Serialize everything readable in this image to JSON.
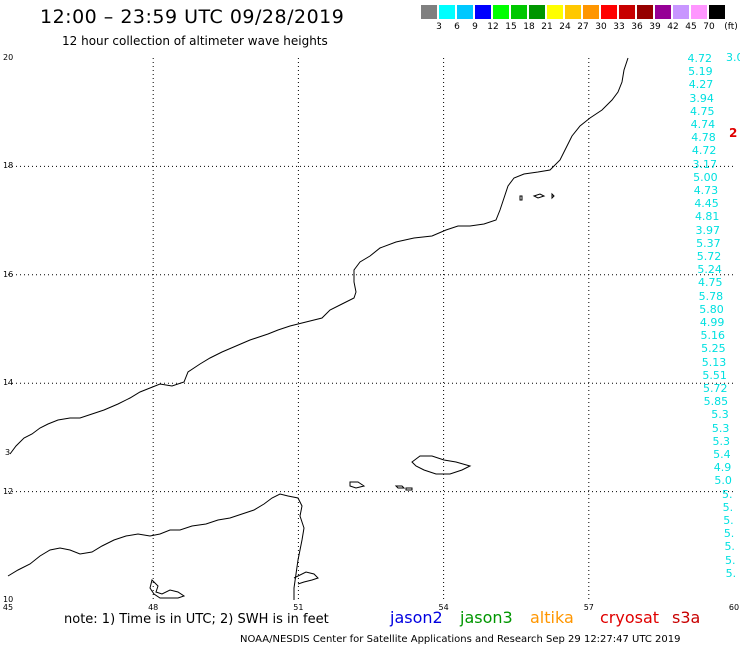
{
  "header": {
    "title": "12:00 – 23:59 UTC 09/28/2019",
    "subtitle": "12 hour collection of altimeter wave heights"
  },
  "colorbar": {
    "unit": "(ft)",
    "colors": [
      "#808080",
      "#00ffff",
      "#00c8ff",
      "#0000ff",
      "#00ff00",
      "#00c800",
      "#009600",
      "#ffff00",
      "#ffc800",
      "#ff9600",
      "#ff0000",
      "#c80000",
      "#960000",
      "#960096",
      "#c896ff",
      "#ff96ff",
      "#000000"
    ],
    "labels": [
      "3",
      "6",
      "9",
      "12",
      "15",
      "18",
      "21",
      "24",
      "27",
      "30",
      "33",
      "36",
      "39",
      "42",
      "45",
      "70"
    ]
  },
  "map": {
    "lat_labels": [
      "20",
      "18",
      "16",
      "14",
      "12",
      "10"
    ],
    "lon_labels": [
      "45",
      "48",
      "51",
      "54",
      "57",
      "60"
    ],
    "lat_range": [
      10,
      20
    ],
    "lon_range": [
      45,
      60
    ],
    "side_label": "3"
  },
  "track": {
    "color": "#00e0e0",
    "top_value": "3.0",
    "values": [
      "4.72",
      "5.19",
      "4.27",
      "3.94",
      "4.75",
      "4.74",
      "4.78",
      "4.72",
      "3.17",
      "5.00",
      "4.73",
      "4.45",
      "4.81",
      "3.97",
      "5.37",
      "5.72",
      "5.24",
      "4.75",
      "5.78",
      "5.80",
      "4.99",
      "5.16",
      "5.25",
      "5.13",
      "5.51",
      "5.72",
      "5.85",
      "5.3",
      "5.3",
      "5.3",
      "5.4",
      "4.9",
      "5.0",
      "5.",
      "5.",
      "5.",
      "5.",
      "5.",
      "5.",
      "5."
    ],
    "red_marker": "2"
  },
  "note": "note: 1) Time is in UTC; 2) SWH is in feet",
  "satellites": [
    {
      "name": "jason2",
      "color": "#0000e0"
    },
    {
      "name": "jason3",
      "color": "#009600"
    },
    {
      "name": "altika",
      "color": "#ff9600"
    },
    {
      "name": "cryosat",
      "color": "#e00000"
    },
    {
      "name": "s3a",
      "color": "#c80000"
    }
  ],
  "footer": "NOAA/NESDIS Center for Satellite Applications and Research   Sep 29 12:27:47 UTC 2019"
}
